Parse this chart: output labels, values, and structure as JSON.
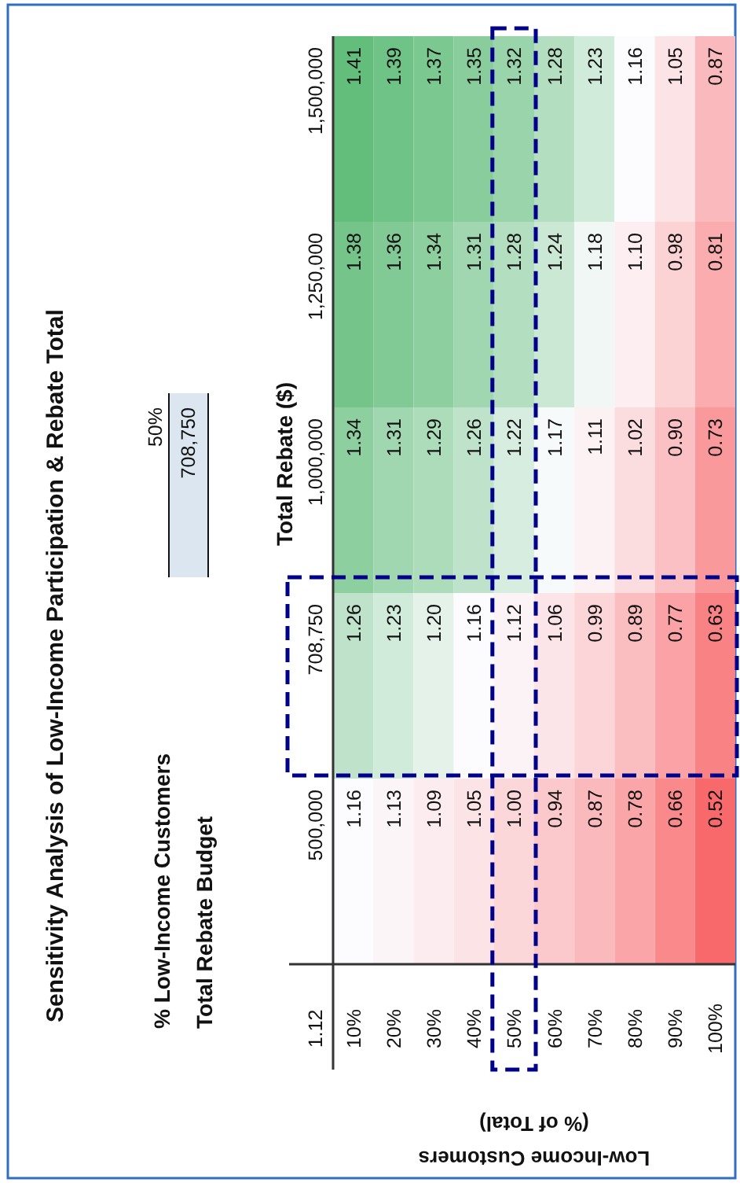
{
  "chart_data": {
    "type": "heatmap",
    "title": "Sensitivity Analysis of Low-Income Participation & Rebate Total",
    "xlabel": "Low-Income Customers (% of Total)",
    "ylabel": "Total Rebate ($)",
    "categories": [
      "10%",
      "20%",
      "30%",
      "40%",
      "50%",
      "60%",
      "70%",
      "80%",
      "90%",
      "100%"
    ],
    "y_categories": [
      "1,500,000",
      "1,250,000",
      "1,000,000",
      "708,750",
      "500,000"
    ],
    "cells": [
      [
        1.41,
        1.39,
        1.37,
        1.35,
        1.32,
        1.28,
        1.23,
        1.16,
        1.05,
        0.87
      ],
      [
        1.38,
        1.36,
        1.34,
        1.31,
        1.28,
        1.24,
        1.18,
        1.1,
        0.98,
        0.81
      ],
      [
        1.34,
        1.31,
        1.29,
        1.26,
        1.22,
        1.17,
        1.11,
        1.02,
        0.9,
        0.73
      ],
      [
        1.26,
        1.23,
        1.2,
        1.16,
        1.12,
        1.06,
        0.99,
        0.89,
        0.77,
        0.63
      ],
      [
        1.16,
        1.13,
        1.09,
        1.05,
        1.0,
        0.94,
        0.87,
        0.78,
        0.66,
        0.52
      ]
    ],
    "cell_labels": [
      [
        "1.41",
        "1.39",
        "1.37",
        "1.35",
        "1.32",
        "1.28",
        "1.23",
        "1.16",
        "1.05",
        "0.87"
      ],
      [
        "1.38",
        "1.36",
        "1.34",
        "1.31",
        "1.28",
        "1.24",
        "1.18",
        "1.10",
        "0.98",
        "0.81"
      ],
      [
        "1.34",
        "1.31",
        "1.29",
        "1.26",
        "1.22",
        "1.17",
        "1.11",
        "1.02",
        "0.90",
        "0.73"
      ],
      [
        "1.26",
        "1.23",
        "1.20",
        "1.16",
        "1.12",
        "1.06",
        "0.99",
        "0.89",
        "0.77",
        "0.63"
      ],
      [
        "1.16",
        "1.13",
        "1.09",
        "1.05",
        "1.00",
        "0.94",
        "0.87",
        "0.78",
        "0.66",
        "0.52"
      ]
    ],
    "annotations": [
      "1.12",
      "% Low-Income Customers",
      "50%",
      "Total Rebate Budget",
      "708,750"
    ]
  }
}
